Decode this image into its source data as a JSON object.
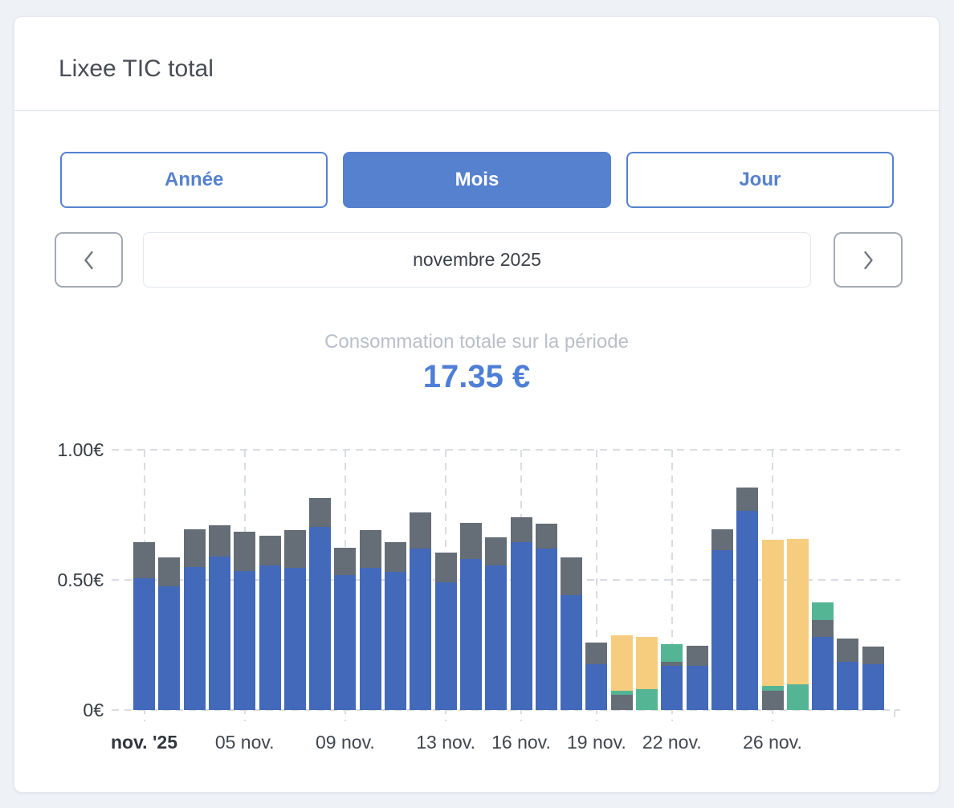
{
  "card": {
    "title": "Lixee TIC total"
  },
  "colors": {
    "accent": "#5581CE",
    "total_value": "#4E7ED6",
    "bar_blue": "#4269BA",
    "bar_gray": "#656D77",
    "bar_yellow": "#F6CD7F",
    "bar_green": "#54B595"
  },
  "period_tabs": [
    {
      "label": "Année",
      "active": false
    },
    {
      "label": "Mois",
      "active": true
    },
    {
      "label": "Jour",
      "active": false
    }
  ],
  "nav": {
    "current_period": "novembre 2025"
  },
  "summary": {
    "label": "Consommation totale sur la période",
    "value": "17.35 €"
  },
  "chart_data": {
    "type": "stacked_bar",
    "unit": "€",
    "ylim": [
      0,
      1
    ],
    "grid": "dashed",
    "legend": "none",
    "y_ticks": [
      {
        "value": 0,
        "label": "0€"
      },
      {
        "value": 0.5,
        "label": "0.50€"
      },
      {
        "value": 1,
        "label": "1.00€"
      }
    ],
    "x_tick_labels": [
      {
        "bar_index": 0,
        "label": "nov. '25",
        "bold": true
      },
      {
        "bar_index": 4,
        "label": "05 nov.",
        "bold": false
      },
      {
        "bar_index": 8,
        "label": "09 nov.",
        "bold": false
      },
      {
        "bar_index": 12,
        "label": "13 nov.",
        "bold": false
      },
      {
        "bar_index": 15,
        "label": "16 nov.",
        "bold": false
      },
      {
        "bar_index": 18,
        "label": "19 nov.",
        "bold": false
      },
      {
        "bar_index": 21,
        "label": "22 nov.",
        "bold": false
      },
      {
        "bar_index": 25,
        "label": "26 nov.",
        "bold": false
      }
    ],
    "series_colors": {
      "blue": "#4269BA",
      "gray": "#656D77",
      "yellow": "#F6CD7F",
      "green": "#54B595"
    },
    "bars": [
      {
        "day": 1,
        "segments": [
          [
            "blue",
            0.505
          ],
          [
            "gray",
            0.14
          ]
        ]
      },
      {
        "day": 2,
        "segments": [
          [
            "blue",
            0.475
          ],
          [
            "gray",
            0.11
          ]
        ]
      },
      {
        "day": 3,
        "segments": [
          [
            "blue",
            0.55
          ],
          [
            "gray",
            0.145
          ]
        ]
      },
      {
        "day": 4,
        "segments": [
          [
            "blue",
            0.59
          ],
          [
            "gray",
            0.12
          ]
        ]
      },
      {
        "day": 5,
        "segments": [
          [
            "blue",
            0.535
          ],
          [
            "gray",
            0.15
          ]
        ]
      },
      {
        "day": 6,
        "segments": [
          [
            "blue",
            0.555
          ],
          [
            "gray",
            0.115
          ]
        ]
      },
      {
        "day": 7,
        "segments": [
          [
            "blue",
            0.545
          ],
          [
            "gray",
            0.145
          ]
        ]
      },
      {
        "day": 8,
        "segments": [
          [
            "blue",
            0.705
          ],
          [
            "gray",
            0.11
          ]
        ]
      },
      {
        "day": 9,
        "segments": [
          [
            "blue",
            0.52
          ],
          [
            "gray",
            0.105
          ]
        ]
      },
      {
        "day": 10,
        "segments": [
          [
            "blue",
            0.545
          ],
          [
            "gray",
            0.145
          ]
        ]
      },
      {
        "day": 11,
        "segments": [
          [
            "blue",
            0.53
          ],
          [
            "gray",
            0.115
          ]
        ]
      },
      {
        "day": 12,
        "segments": [
          [
            "blue",
            0.62
          ],
          [
            "gray",
            0.14
          ]
        ]
      },
      {
        "day": 13,
        "segments": [
          [
            "blue",
            0.49
          ],
          [
            "gray",
            0.115
          ]
        ]
      },
      {
        "day": 14,
        "segments": [
          [
            "blue",
            0.58
          ],
          [
            "gray",
            0.14
          ]
        ]
      },
      {
        "day": 15,
        "segments": [
          [
            "blue",
            0.555
          ],
          [
            "gray",
            0.11
          ]
        ]
      },
      {
        "day": 16,
        "segments": [
          [
            "blue",
            0.645
          ],
          [
            "gray",
            0.095
          ]
        ]
      },
      {
        "day": 17,
        "segments": [
          [
            "blue",
            0.62
          ],
          [
            "gray",
            0.095
          ]
        ]
      },
      {
        "day": 18,
        "segments": [
          [
            "blue",
            0.44
          ],
          [
            "gray",
            0.145
          ]
        ]
      },
      {
        "day": 19,
        "segments": [
          [
            "blue",
            0.175
          ],
          [
            "gray",
            0.085
          ]
        ]
      },
      {
        "day": 20,
        "segments": [
          [
            "gray",
            0.06
          ],
          [
            "green",
            0.015
          ],
          [
            "yellow",
            0.213
          ]
        ]
      },
      {
        "day": 21,
        "segments": [
          [
            "green",
            0.08
          ],
          [
            "yellow",
            0.2
          ]
        ]
      },
      {
        "day": 22,
        "segments": [
          [
            "blue",
            0.17
          ],
          [
            "gray",
            0.015
          ],
          [
            "green",
            0.068
          ]
        ]
      },
      {
        "day": 23,
        "segments": [
          [
            "blue",
            0.17
          ],
          [
            "gray",
            0.077
          ]
        ]
      },
      {
        "day": 24,
        "segments": [
          [
            "blue",
            0.615
          ],
          [
            "gray",
            0.08
          ]
        ]
      },
      {
        "day": 25,
        "segments": [
          [
            "blue",
            0.765
          ],
          [
            "gray",
            0.09
          ]
        ]
      },
      {
        "day": 26,
        "segments": [
          [
            "gray",
            0.075
          ],
          [
            "green",
            0.018
          ],
          [
            "yellow",
            0.56
          ]
        ]
      },
      {
        "day": 27,
        "segments": [
          [
            "green",
            0.1
          ],
          [
            "yellow",
            0.558
          ]
        ]
      },
      {
        "day": 28,
        "segments": [
          [
            "blue",
            0.28
          ],
          [
            "gray",
            0.065
          ],
          [
            "green",
            0.07
          ]
        ]
      },
      {
        "day": 29,
        "segments": [
          [
            "blue",
            0.185
          ],
          [
            "gray",
            0.09
          ]
        ]
      },
      {
        "day": 30,
        "segments": [
          [
            "blue",
            0.175
          ],
          [
            "gray",
            0.07
          ]
        ]
      }
    ]
  }
}
